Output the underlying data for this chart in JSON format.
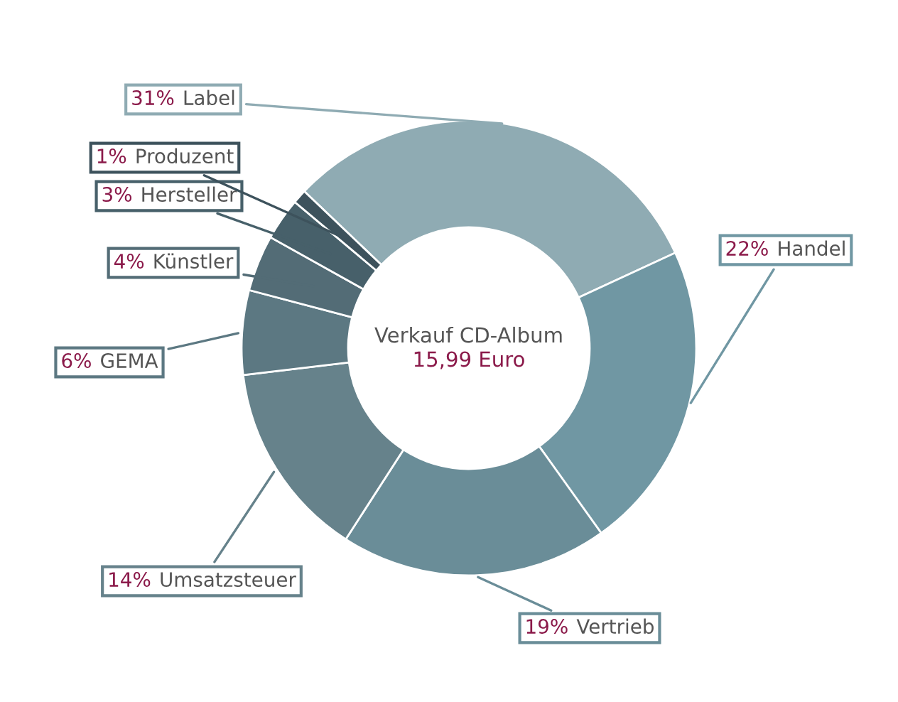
{
  "chart_data": {
    "type": "donut",
    "title": "Verkauf CD-Album",
    "subtitle": "15,99 Euro",
    "categories": [
      "Label",
      "Handel",
      "Vertrieb",
      "Umsatzsteuer",
      "GEMA",
      "Künstler",
      "Hersteller",
      "Produzent"
    ],
    "values": [
      31,
      22,
      19,
      14,
      6,
      4,
      3,
      1
    ],
    "value_labels": [
      "31%",
      "22%",
      "19%",
      "14%",
      "6%",
      "4%",
      "3%",
      "1%"
    ],
    "colors": [
      "#8fabb3",
      "#7097a3",
      "#6a8d98",
      "#66828b",
      "#5c7882",
      "#536c76",
      "#47606a",
      "#3d525c"
    ]
  }
}
